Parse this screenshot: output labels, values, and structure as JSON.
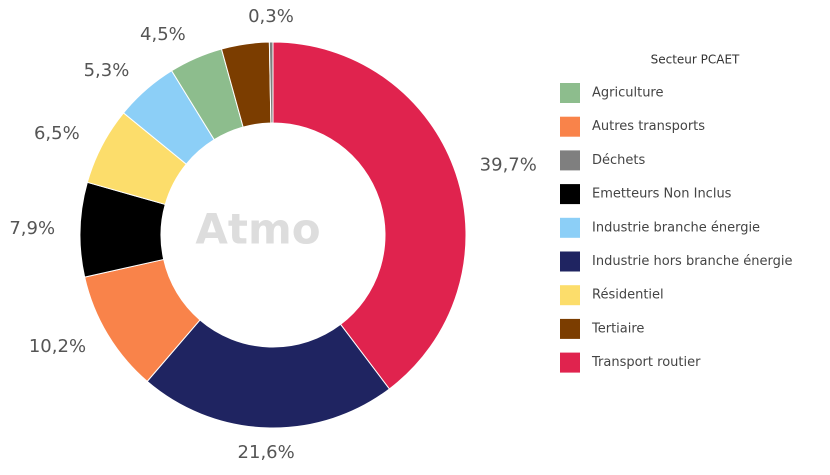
{
  "chart_data": {
    "type": "donut",
    "legend_title": "Secteur PCAET",
    "watermark": "Atmo",
    "categories": [
      "Transport routier",
      "Industrie hors branche énergie",
      "Autres transports",
      "Emetteurs Non Inclus",
      "Résidentiel",
      "Industrie branche énergie",
      "Agriculture",
      "Tertiaire",
      "Déchets"
    ],
    "values": [
      39.7,
      21.6,
      10.2,
      7.9,
      6.5,
      5.3,
      4.5,
      4.0,
      0.3
    ],
    "value_labels": [
      "39,7%",
      "21,6%",
      "10,2%",
      "7,9%",
      "6,5%",
      "5,3%",
      "4,5%",
      null,
      "0,3%"
    ],
    "colors": [
      "#e0234e",
      "#1f2461",
      "#f9834a",
      "#000000",
      "#fcdd6b",
      "#8ccff7",
      "#8dbd8d",
      "#7b3d00",
      "#7f7f7f"
    ]
  }
}
